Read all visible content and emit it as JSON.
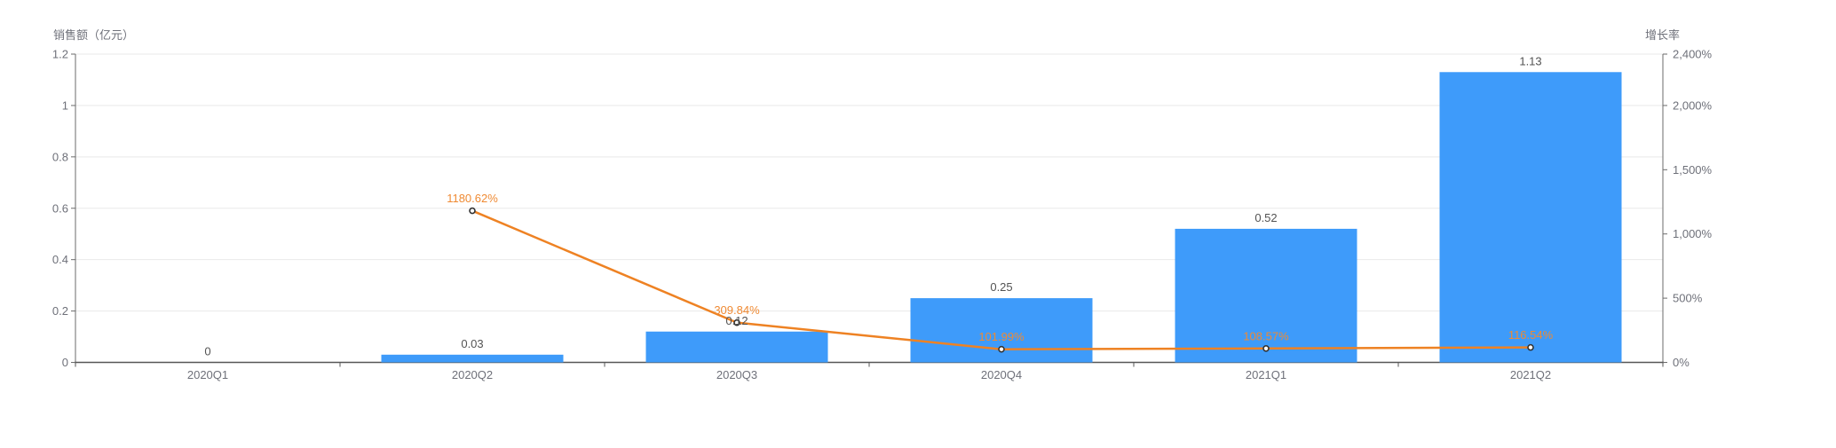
{
  "chart_data": {
    "type": "bar",
    "title": "",
    "legend": "none",
    "grid": true,
    "background": "#ffffff",
    "categories": [
      "2020Q1",
      "2020Q2",
      "2020Q3",
      "2020Q4",
      "2021Q1",
      "2021Q2"
    ],
    "series": [
      {
        "name": "销售额",
        "type": "bar",
        "axis": "left",
        "color": "#3E9BFA",
        "label_color": "#535353",
        "values": [
          0,
          0.03,
          0.12,
          0.25,
          0.52,
          1.13
        ],
        "labels": [
          "0",
          "0.03",
          "0.12",
          "0.25",
          "0.52",
          "1.13"
        ]
      },
      {
        "name": "增长率",
        "type": "line",
        "axis": "right",
        "color": "#EE8223",
        "label_color": "#EF8A33",
        "marker": "hollow-circle",
        "marker_stroke": "#333333",
        "values": [
          null,
          1180.62,
          309.84,
          101.99,
          108.57,
          116.54
        ],
        "labels": [
          "",
          "1180.62%",
          "309.84%",
          "101.99%",
          "108.57%",
          "116.54%"
        ]
      }
    ],
    "left_axis": {
      "title": "销售额（亿元）",
      "min": 0,
      "max": 1.2,
      "tick_values": [
        0,
        0.2,
        0.4,
        0.6,
        0.8,
        1,
        1.2
      ],
      "tick_labels": [
        "0",
        "0.2",
        "0.4",
        "0.6",
        "0.8",
        "1",
        "1.2"
      ]
    },
    "right_axis": {
      "title": "增长率",
      "min": 0,
      "max": 2400,
      "tick_values": [
        0,
        500,
        1000,
        1500,
        2000,
        2400
      ],
      "tick_labels": [
        "0%",
        "500%",
        "1,000%",
        "1,500%",
        "2,000%",
        "2,400%"
      ]
    },
    "colors": {
      "grid_line": "#E9E9E9",
      "x_axis_line": "#575757",
      "y_axis_line": "#6b6b6b",
      "tick_text": "#6E7079"
    }
  }
}
